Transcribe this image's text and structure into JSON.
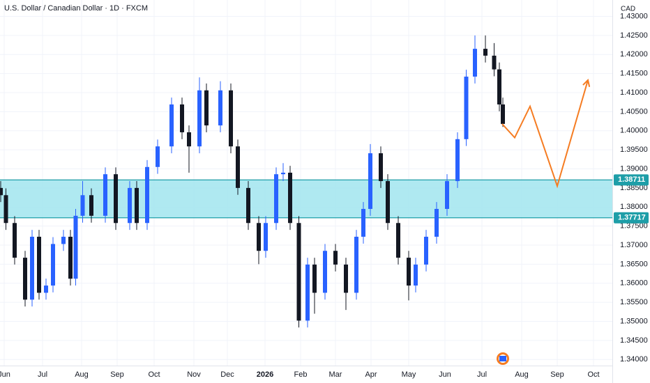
{
  "chart_data": {
    "type": "candlestick",
    "title": "U.S. Dollar / Canadian Dollar · 1D · FXCM",
    "currency": "CAD",
    "up_color": "#2962ff",
    "down_color": "#131722",
    "grid": true,
    "xlim": [
      -2.4,
      348.8
    ],
    "ylim": [
      1.3384,
      1.4343
    ],
    "xticks": [
      {
        "value": 0,
        "label": "Jun"
      },
      {
        "value": 22,
        "label": "Jul"
      },
      {
        "value": 44.4,
        "label": "Aug"
      },
      {
        "value": 64.8,
        "label": "Sep"
      },
      {
        "value": 86,
        "label": "Oct"
      },
      {
        "value": 108.8,
        "label": "Nov"
      },
      {
        "value": 128,
        "label": "Dec"
      },
      {
        "value": 149.6,
        "label": "2026"
      },
      {
        "value": 170,
        "label": "Feb"
      },
      {
        "value": 190,
        "label": "Mar"
      },
      {
        "value": 210.4,
        "label": "Apr"
      },
      {
        "value": 232,
        "label": "May"
      },
      {
        "value": 252.8,
        "label": "Jun"
      },
      {
        "value": 274,
        "label": "Jul"
      },
      {
        "value": 296.8,
        "label": "Aug"
      },
      {
        "value": 317.2,
        "label": "Sep"
      },
      {
        "value": 338,
        "label": "Oct"
      }
    ],
    "yticks": [
      {
        "value": 1.34,
        "label": "1.34000"
      },
      {
        "value": 1.345,
        "label": "1.34500"
      },
      {
        "value": 1.35,
        "label": "1.35000"
      },
      {
        "value": 1.355,
        "label": "1.35500"
      },
      {
        "value": 1.36,
        "label": "1.36000"
      },
      {
        "value": 1.365,
        "label": "1.36500"
      },
      {
        "value": 1.37,
        "label": "1.37000"
      },
      {
        "value": 1.375,
        "label": "1.37500"
      },
      {
        "value": 1.38,
        "label": "1.38000"
      },
      {
        "value": 1.385,
        "label": "1.38500"
      },
      {
        "value": 1.39,
        "label": "1.39000"
      },
      {
        "value": 1.395,
        "label": "1.39500"
      },
      {
        "value": 1.4,
        "label": "1.40000"
      },
      {
        "value": 1.405,
        "label": "1.40500"
      },
      {
        "value": 1.41,
        "label": "1.41000"
      },
      {
        "value": 1.415,
        "label": "1.41500"
      },
      {
        "value": 1.42,
        "label": "1.42000"
      },
      {
        "value": 1.425,
        "label": "1.42500"
      },
      {
        "value": 1.43,
        "label": "1.43000"
      }
    ],
    "x": [
      -2,
      1,
      6,
      12,
      16,
      20,
      24,
      28,
      34,
      38,
      41,
      45,
      50,
      58,
      64,
      72,
      76,
      82,
      88,
      96,
      102,
      106,
      112,
      116,
      124,
      130,
      134,
      140,
      146,
      150,
      156,
      160,
      164,
      169,
      174,
      178,
      184,
      190,
      196,
      202,
      206,
      210,
      216,
      220,
      226,
      232,
      236,
      242,
      248,
      254,
      260,
      265,
      270,
      276,
      281,
      284,
      286
    ],
    "open": [
      1.385,
      1.3831,
      1.3758,
      1.3667,
      1.3557,
      1.3722,
      1.3575,
      1.3594,
      1.3703,
      1.3722,
      1.3612,
      1.3777,
      1.3831,
      1.3777,
      1.3886,
      1.3758,
      1.385,
      1.3758,
      1.3905,
      1.3959,
      1.4069,
      1.3996,
      1.3959,
      1.4106,
      1.4014,
      1.4106,
      1.3959,
      1.385,
      1.3758,
      1.3685,
      1.3758,
      1.3886,
      1.389,
      1.3758,
      1.3502,
      1.3649,
      1.3575,
      1.3685,
      1.3649,
      1.3575,
      1.3722,
      1.3795,
      1.3941,
      1.3868,
      1.3758,
      1.3667,
      1.3594,
      1.3649,
      1.3722,
      1.3795,
      1.3868,
      1.3978,
      1.4142,
      1.4215,
      1.4197,
      1.4161,
      1.4069
    ],
    "high": [
      1.3868,
      1.3849,
      1.3776,
      1.3685,
      1.374,
      1.374,
      1.3612,
      1.3721,
      1.374,
      1.374,
      1.3795,
      1.3868,
      1.3849,
      1.3904,
      1.3904,
      1.3868,
      1.3868,
      1.3923,
      1.3977,
      1.4087,
      1.4087,
      1.4014,
      1.414,
      1.4124,
      1.413,
      1.4124,
      1.3977,
      1.3868,
      1.3776,
      1.3776,
      1.3904,
      1.3915,
      1.3908,
      1.3776,
      1.3667,
      1.3667,
      1.3703,
      1.3703,
      1.3667,
      1.374,
      1.3813,
      1.3965,
      1.3959,
      1.3886,
      1.3776,
      1.3685,
      1.3667,
      1.374,
      1.3813,
      1.3886,
      1.3996,
      1.416,
      1.425,
      1.425,
      1.423,
      1.4179,
      1.4087
    ],
    "low": [
      1.3813,
      1.374,
      1.3649,
      1.3539,
      1.3539,
      1.3557,
      1.3557,
      1.3576,
      1.3685,
      1.3594,
      1.3594,
      1.3759,
      1.3759,
      1.3759,
      1.374,
      1.374,
      1.374,
      1.374,
      1.3887,
      1.3941,
      1.3978,
      1.389,
      1.3941,
      1.3996,
      1.3996,
      1.3941,
      1.3832,
      1.374,
      1.365,
      1.3667,
      1.374,
      1.3868,
      1.374,
      1.3484,
      1.3484,
      1.352,
      1.3557,
      1.3631,
      1.353,
      1.3557,
      1.3704,
      1.3777,
      1.385,
      1.374,
      1.3649,
      1.3555,
      1.3576,
      1.3631,
      1.3704,
      1.3777,
      1.385,
      1.396,
      1.4124,
      1.4179,
      1.4143,
      1.4051,
      1.401
    ],
    "close": [
      1.3831,
      1.3758,
      1.3667,
      1.3557,
      1.3722,
      1.3575,
      1.3594,
      1.3703,
      1.3722,
      1.3612,
      1.3777,
      1.3831,
      1.3777,
      1.3886,
      1.3758,
      1.385,
      1.3758,
      1.3905,
      1.3959,
      1.4069,
      1.3996,
      1.3959,
      1.4106,
      1.4014,
      1.4106,
      1.3959,
      1.385,
      1.3758,
      1.3685,
      1.3758,
      1.3886,
      1.389,
      1.3758,
      1.3502,
      1.3649,
      1.3575,
      1.3685,
      1.3649,
      1.3575,
      1.3722,
      1.3795,
      1.3941,
      1.3868,
      1.3758,
      1.3667,
      1.3594,
      1.3649,
      1.3722,
      1.3795,
      1.3868,
      1.3978,
      1.4142,
      1.4215,
      1.4197,
      1.4161,
      1.4069,
      1.4018
    ],
    "zone": {
      "top": 1.38711,
      "bottom": 1.37717,
      "color": "#a6e7ef",
      "border_color": "#1e9ea8"
    },
    "projection": {
      "color": "#f57c22",
      "x": [
        285.6,
        292.8,
        301.6,
        317.2,
        334.8
      ],
      "values": [
        1.4018,
        1.3982,
        1.4064,
        1.3855,
        1.4133
      ]
    }
  }
}
